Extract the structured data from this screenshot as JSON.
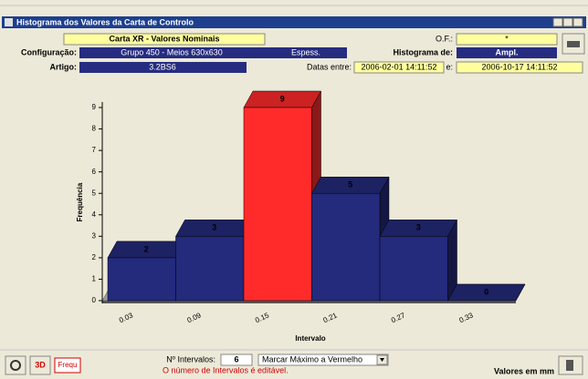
{
  "window": {
    "title": "Histograma dos Valores da Carta de Controlo"
  },
  "header": {
    "chart_title": "Carta XR - Valores Nominais",
    "of_label": "O.F.:",
    "of_value": "*",
    "config_label": "Configuração:",
    "config_value": "Grupo 450 - Meios 630x630",
    "config_type": "Espess.",
    "histogram_label": "Histograma de:",
    "histogram_value": "Ampl.",
    "article_label": "Artigo:",
    "article_value": "3.2BS6",
    "dates_label": "Datas entre:",
    "date_from": "2006-02-01 14:11:52",
    "dates_and": "e:",
    "date_to": "2006-10-17 14:11:52"
  },
  "chart_data": {
    "type": "bar",
    "xlabel": "Intervalo",
    "ylabel": "Frequência",
    "categories": [
      "0.03",
      "0.09",
      "0.15",
      "0.21",
      "0.27",
      "0.33"
    ],
    "values": [
      2,
      3,
      9,
      5,
      3,
      0
    ],
    "colors": [
      "#242a7c",
      "#242a7c",
      "#ff2b2b",
      "#242a7c",
      "#242a7c",
      "#242a7c"
    ],
    "ylim": [
      0,
      9
    ],
    "yticks": [
      0,
      1,
      2,
      3,
      4,
      5,
      6,
      7,
      8,
      9
    ]
  },
  "footer": {
    "btn_3d": "3D",
    "btn_freq": "Frequ",
    "intervals_label": "Nº Intervalos:",
    "intervals_value": 6,
    "mark_option": "Marcar Máximo a Vermelho",
    "hint": "O número de Intervalos é editável.",
    "units": "Valores em mm"
  }
}
